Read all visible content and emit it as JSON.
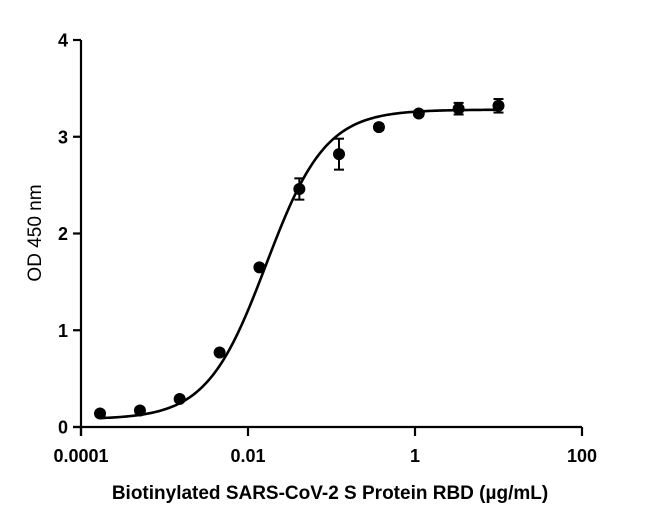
{
  "chart_data": {
    "type": "scatter",
    "title": "",
    "xlabel": "Biotinylated SARS-CoV-2 S Protein RBD (µg/mL)",
    "ylabel": "OD 450 nm",
    "xscale": "log",
    "xlim": [
      0.0001,
      100
    ],
    "ylim": [
      0,
      4
    ],
    "x_ticks": [
      {
        "value": 0.0001,
        "label": "0.0001"
      },
      {
        "value": 0.01,
        "label": "0.01"
      },
      {
        "value": 1,
        "label": "1"
      },
      {
        "value": 100,
        "label": "100"
      }
    ],
    "y_ticks": [
      {
        "value": 0,
        "label": "0"
      },
      {
        "value": 1,
        "label": "1"
      },
      {
        "value": 2,
        "label": "2"
      },
      {
        "value": 3,
        "label": "3"
      },
      {
        "value": 4,
        "label": "4"
      }
    ],
    "grid": false,
    "legend": null,
    "series": [
      {
        "name": "OD 450 nm",
        "marker": "circle",
        "color": "#000000",
        "x": [
          0.000169,
          0.000508,
          0.00152,
          0.00457,
          0.0137,
          0.0412,
          0.123,
          0.37,
          1.11,
          3.33,
          10.0
        ],
        "y": [
          0.14,
          0.17,
          0.29,
          0.77,
          1.65,
          2.46,
          2.82,
          3.1,
          3.24,
          3.29,
          3.32
        ],
        "error": [
          0.01,
          0.01,
          0.01,
          0.02,
          0.02,
          0.11,
          0.16,
          0.03,
          0.02,
          0.06,
          0.07
        ]
      }
    ],
    "fit": {
      "type": "4PL",
      "bottom": 0.08,
      "top": 3.28,
      "ec50": 0.0165,
      "hill": 1.22
    }
  }
}
